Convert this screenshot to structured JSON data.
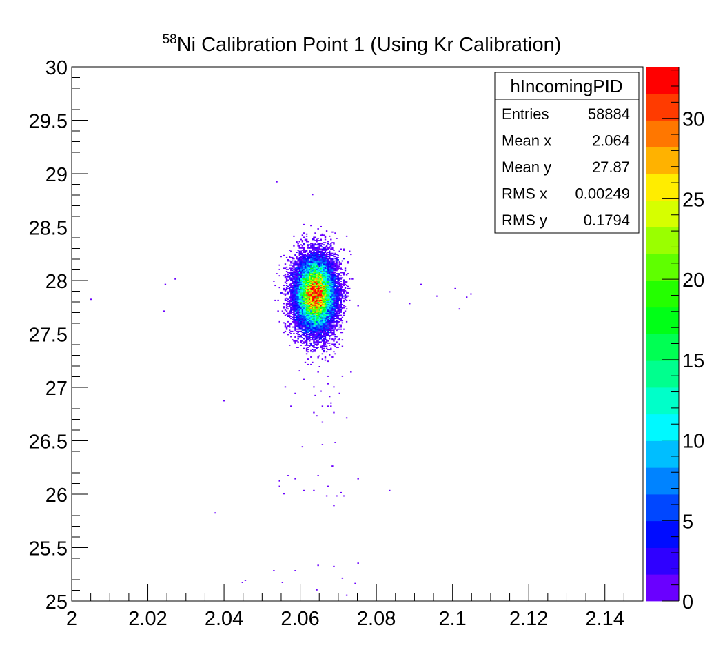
{
  "chart_data": {
    "type": "heatmap",
    "title_sup": "58",
    "title": "Ni Calibration Point 1 (Using Kr Calibration)",
    "xlabel": "",
    "ylabel": "",
    "xlim": [
      2.0,
      2.15
    ],
    "ylim": [
      25,
      30
    ],
    "zlim": [
      0,
      33.2
    ],
    "x_ticks": [
      2,
      2.02,
      2.04,
      2.06,
      2.08,
      2.1,
      2.12,
      2.14
    ],
    "x_tick_labels": [
      "2",
      "2.02",
      "2.04",
      "2.06",
      "2.08",
      "2.1",
      "2.12",
      "2.14"
    ],
    "y_ticks": [
      25,
      25.5,
      26,
      26.5,
      27,
      27.5,
      28,
      28.5,
      29,
      29.5,
      30
    ],
    "y_tick_labels": [
      "25",
      "25.5",
      "26",
      "26.5",
      "27",
      "27.5",
      "28",
      "28.5",
      "29",
      "29.5",
      "30"
    ],
    "z_ticks": [
      0,
      5,
      10,
      15,
      20,
      25,
      30
    ],
    "z_tick_labels": [
      "0",
      "5",
      "10",
      "15",
      "20",
      "25",
      "30"
    ],
    "palette_levels": 20,
    "grid": false,
    "legend": "none",
    "stats": {
      "name": "hIncomingPID",
      "rows": [
        {
          "label": "Entries",
          "value": "58884"
        },
        {
          "label": "Mean x",
          "value": "2.064"
        },
        {
          "label": "Mean y",
          "value": "27.87"
        },
        {
          "label": "RMS x",
          "value": "0.00249"
        },
        {
          "label": "RMS y",
          "value": "0.1794"
        }
      ],
      "placement": "top-right"
    },
    "main_cluster": {
      "mean_x": 2.064,
      "mean_y": 27.87,
      "rms_x": 0.00249,
      "rms_y": 0.1794,
      "peak_count": 33
    },
    "sparse_points": [
      [
        2.0539,
        28.92
      ],
      [
        2.063,
        28.8
      ],
      [
        2.0051,
        27.82
      ],
      [
        2.0242,
        27.71
      ],
      [
        2.0246,
        27.97
      ],
      [
        2.0273,
        28.02
      ],
      [
        2.0836,
        27.9
      ],
      [
        2.0917,
        27.97
      ],
      [
        2.0886,
        27.79
      ],
      [
        2.0959,
        27.86
      ],
      [
        2.1008,
        27.92
      ],
      [
        2.102,
        27.74
      ],
      [
        2.1047,
        27.88
      ],
      [
        2.1037,
        27.84
      ],
      [
        2.063,
        27.23
      ],
      [
        2.0622,
        27.21
      ],
      [
        2.0648,
        27.14
      ],
      [
        2.0673,
        27.1
      ],
      [
        2.0675,
        27.03
      ],
      [
        2.0734,
        27.14
      ],
      [
        2.0709,
        27.1
      ],
      [
        2.0611,
        27.08
      ],
      [
        2.0637,
        27.0
      ],
      [
        2.064,
        26.92
      ],
      [
        2.0689,
        27.0
      ],
      [
        2.0653,
        26.96
      ],
      [
        2.0677,
        26.91
      ],
      [
        2.0702,
        26.95
      ],
      [
        2.0673,
        26.83
      ],
      [
        2.0658,
        26.83
      ],
      [
        2.068,
        26.86
      ],
      [
        2.0588,
        26.94
      ],
      [
        2.0559,
        27.0
      ],
      [
        2.04,
        26.88
      ],
      [
        2.0577,
        26.83
      ],
      [
        2.0637,
        26.77
      ],
      [
        2.0682,
        26.82
      ],
      [
        2.0689,
        26.76
      ],
      [
        2.0644,
        26.74
      ],
      [
        2.066,
        26.68
      ],
      [
        2.072,
        26.72
      ],
      [
        2.0604,
        26.45
      ],
      [
        2.0657,
        26.47
      ],
      [
        2.0693,
        26.48
      ],
      [
        2.0686,
        26.27
      ],
      [
        2.0568,
        26.17
      ],
      [
        2.0588,
        26.15
      ],
      [
        2.0646,
        26.18
      ],
      [
        2.0751,
        26.15
      ],
      [
        2.0545,
        26.12
      ],
      [
        2.0545,
        26.07
      ],
      [
        2.0673,
        26.07
      ],
      [
        2.0706,
        26.01
      ],
      [
        2.0637,
        26.03
      ],
      [
        2.0608,
        26.03
      ],
      [
        2.0668,
        25.98
      ],
      [
        2.0697,
        25.99
      ],
      [
        2.0836,
        26.04
      ],
      [
        2.0557,
        26.0
      ],
      [
        2.0716,
        25.99
      ],
      [
        2.0687,
        25.9
      ],
      [
        2.0378,
        25.83
      ],
      [
        2.0447,
        25.17
      ],
      [
        2.0454,
        25.19
      ],
      [
        2.0532,
        25.28
      ],
      [
        2.0588,
        25.28
      ],
      [
        2.0555,
        25.17
      ],
      [
        2.0648,
        25.34
      ],
      [
        2.0689,
        25.32
      ],
      [
        2.0753,
        25.35
      ],
      [
        2.0709,
        25.22
      ],
      [
        2.0745,
        25.16
      ],
      [
        2.0644,
        25.1
      ],
      [
        2.072,
        25.06
      ]
    ]
  }
}
